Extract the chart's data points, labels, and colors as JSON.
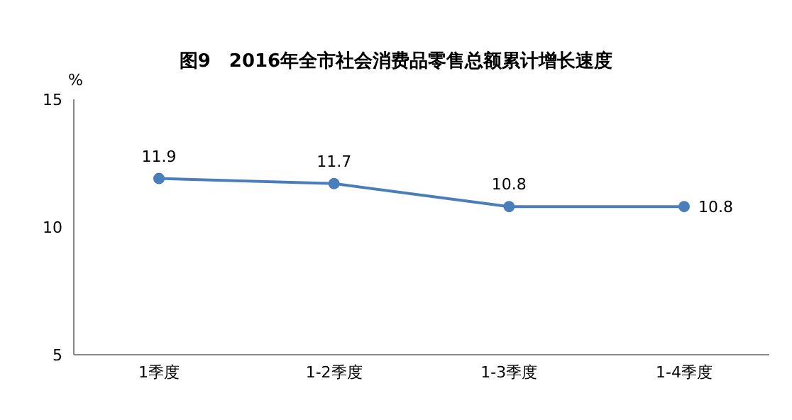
{
  "chart_data": {
    "type": "line",
    "title": "图9　2016年全市社会消费品零售总额累计增长速度",
    "ylabel": "%",
    "categories": [
      "1季度",
      "1-2季度",
      "1-3季度",
      "1-4季度"
    ],
    "series": [
      {
        "color": "#4a7ebb",
        "values": [
          11.9,
          11.7,
          10.8,
          10.8
        ]
      }
    ],
    "ylim": [
      5,
      15
    ],
    "yticks": [
      5,
      10,
      15
    ],
    "grid": false,
    "legend": false,
    "marker": "circle",
    "line_style": "solid",
    "data_labels": true
  }
}
